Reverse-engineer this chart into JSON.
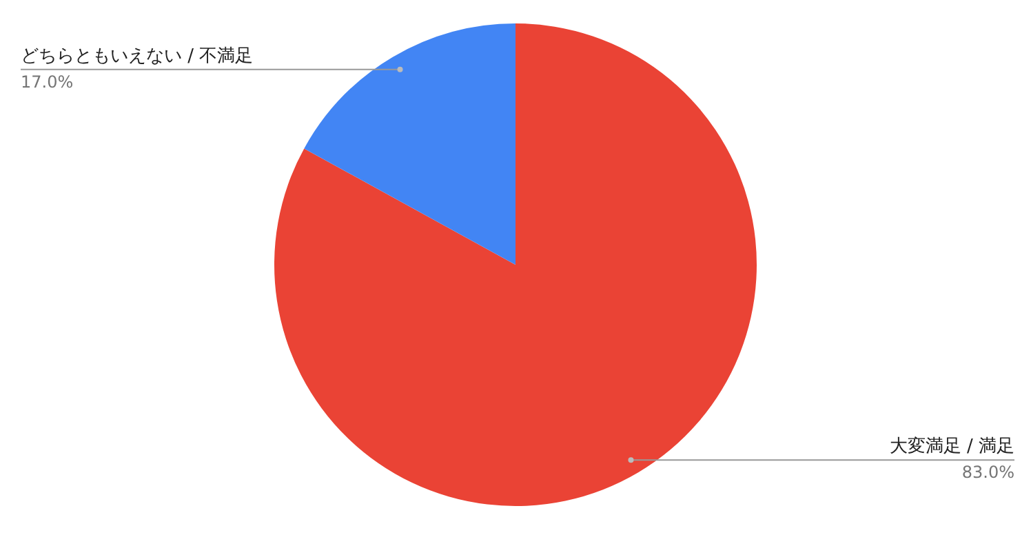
{
  "chart_data": {
    "type": "pie",
    "categories": [
      "大変満足 / 満足",
      "どちらともいえない / 不満足"
    ],
    "values": [
      83.0,
      17.0
    ],
    "colors": [
      "#ea4335",
      "#4285f4"
    ],
    "value_labels": [
      "83.0%",
      "17.0%"
    ],
    "legend": false
  }
}
